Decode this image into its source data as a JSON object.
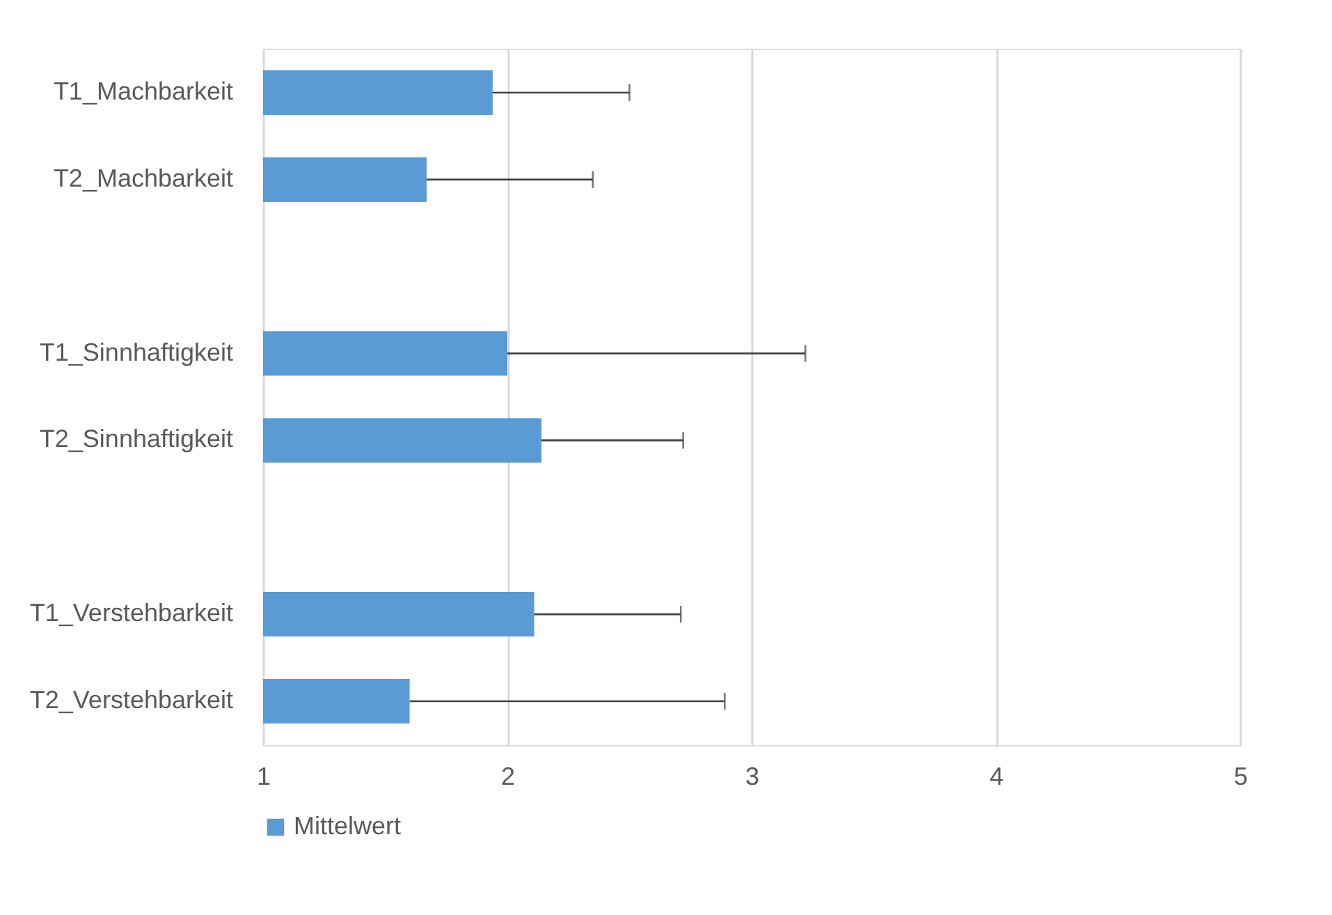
{
  "chart_data": {
    "type": "bar",
    "orientation": "horizontal",
    "categories": [
      "T1_Machbarkeit",
      "T2_Machbarkeit",
      null,
      "T1_Sinnhaftigkeit",
      "T2_Sinnhaftigkeit",
      null,
      "T1_Verstehbarkeit",
      "T2_Verstehbarkeit"
    ],
    "series": [
      {
        "name": "Mittelwert",
        "color": "#5b9bd5",
        "values": [
          1.94,
          1.67,
          null,
          2.0,
          2.14,
          null,
          2.11,
          1.6
        ],
        "errors": [
          [
            1.94,
            2.5
          ],
          [
            1.67,
            2.35
          ],
          null,
          [
            2.0,
            3.22
          ],
          [
            2.14,
            2.72
          ],
          null,
          [
            2.11,
            2.71
          ],
          [
            1.6,
            2.89
          ]
        ]
      }
    ],
    "xlim": [
      1,
      5
    ],
    "xticks": [
      1,
      2,
      3,
      4,
      5
    ],
    "grid": "x",
    "legend": "bottom"
  }
}
